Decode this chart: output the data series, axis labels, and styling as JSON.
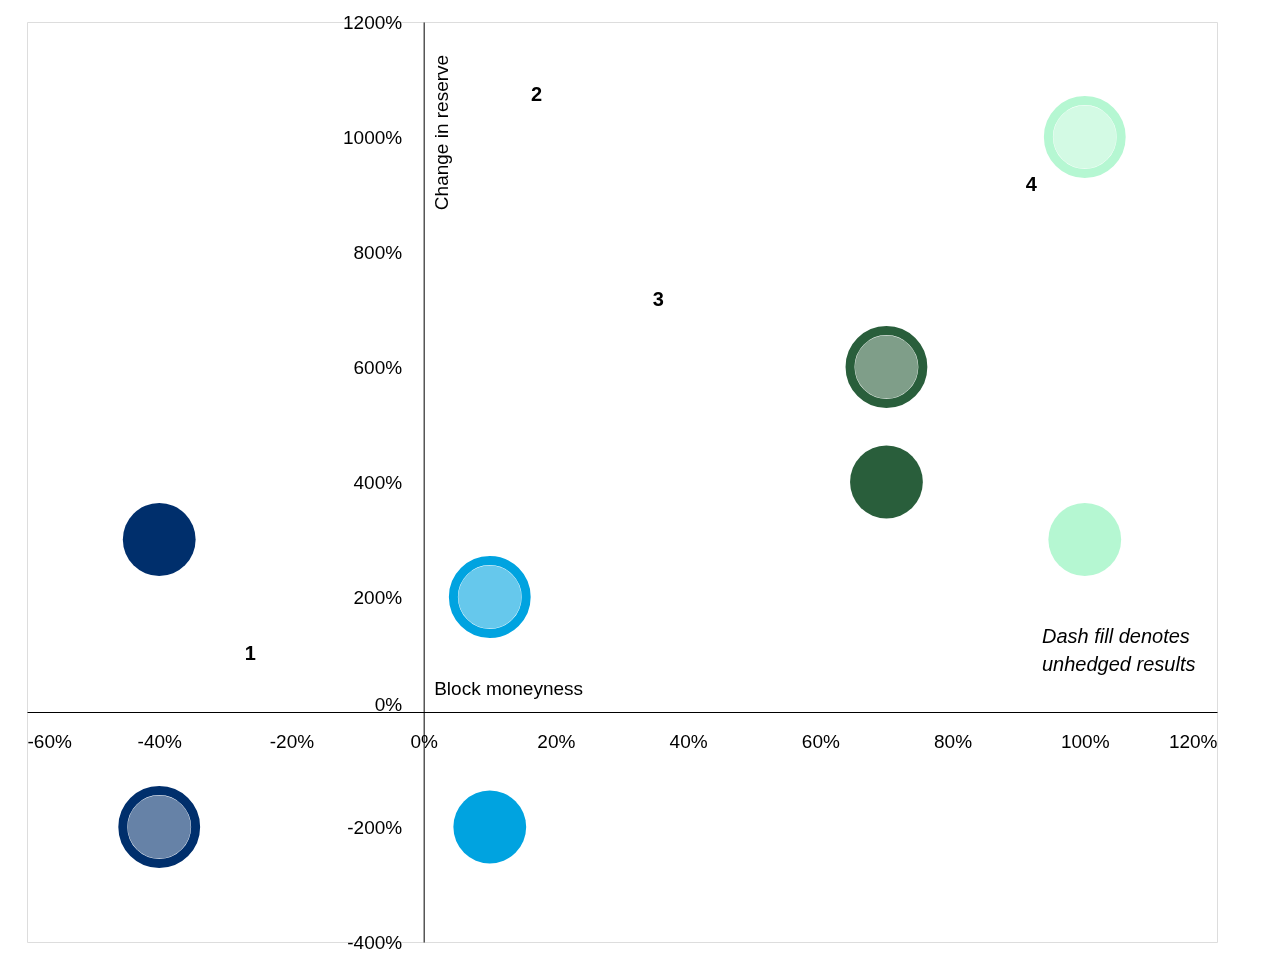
{
  "chart_data": {
    "type": "scatter",
    "xlabel": "Block moneyness",
    "ylabel": "Change in reserve",
    "xlim": [
      -60,
      120
    ],
    "ylim": [
      -400,
      1200
    ],
    "xticks": [
      {
        "value": -60,
        "label": "-60%"
      },
      {
        "value": -40,
        "label": "-40%"
      },
      {
        "value": -20,
        "label": "-20%"
      },
      {
        "value": 0,
        "label": "0%"
      },
      {
        "value": 20,
        "label": "20%"
      },
      {
        "value": 40,
        "label": "40%"
      },
      {
        "value": 60,
        "label": "60%"
      },
      {
        "value": 80,
        "label": "80%"
      },
      {
        "value": 100,
        "label": "100%"
      },
      {
        "value": 120,
        "label": "120%"
      }
    ],
    "yticks": [
      {
        "value": -400,
        "label": "-400%"
      },
      {
        "value": -200,
        "label": "-200%"
      },
      {
        "value": 0,
        "label": "0%"
      },
      {
        "value": 200,
        "label": "200%"
      },
      {
        "value": 400,
        "label": "400%"
      },
      {
        "value": 600,
        "label": "600%"
      },
      {
        "value": 800,
        "label": "800%"
      },
      {
        "value": 1000,
        "label": "1000%"
      },
      {
        "value": 1200,
        "label": "1200%"
      }
    ],
    "marker": "circle",
    "series": [
      {
        "x": [
          -40,
          10,
          70,
          100
        ],
        "values": [
          300,
          -200,
          400,
          300
        ],
        "colors": [
          "#002f6c",
          "#00a3e0",
          "#295e3b",
          "#b5f7d2"
        ],
        "line_style": "solid"
      },
      {
        "x": [
          -40,
          10,
          70,
          100
        ],
        "values": [
          -200,
          200,
          600,
          1000
        ],
        "colors": [
          "#002f6c",
          "#00a3e0",
          "#295e3b",
          "#b5f7d2"
        ],
        "line_style": "dashed"
      }
    ],
    "annotations": [
      "1",
      "2",
      "3",
      "4",
      "Dash fill denotes unhedged results"
    ]
  }
}
